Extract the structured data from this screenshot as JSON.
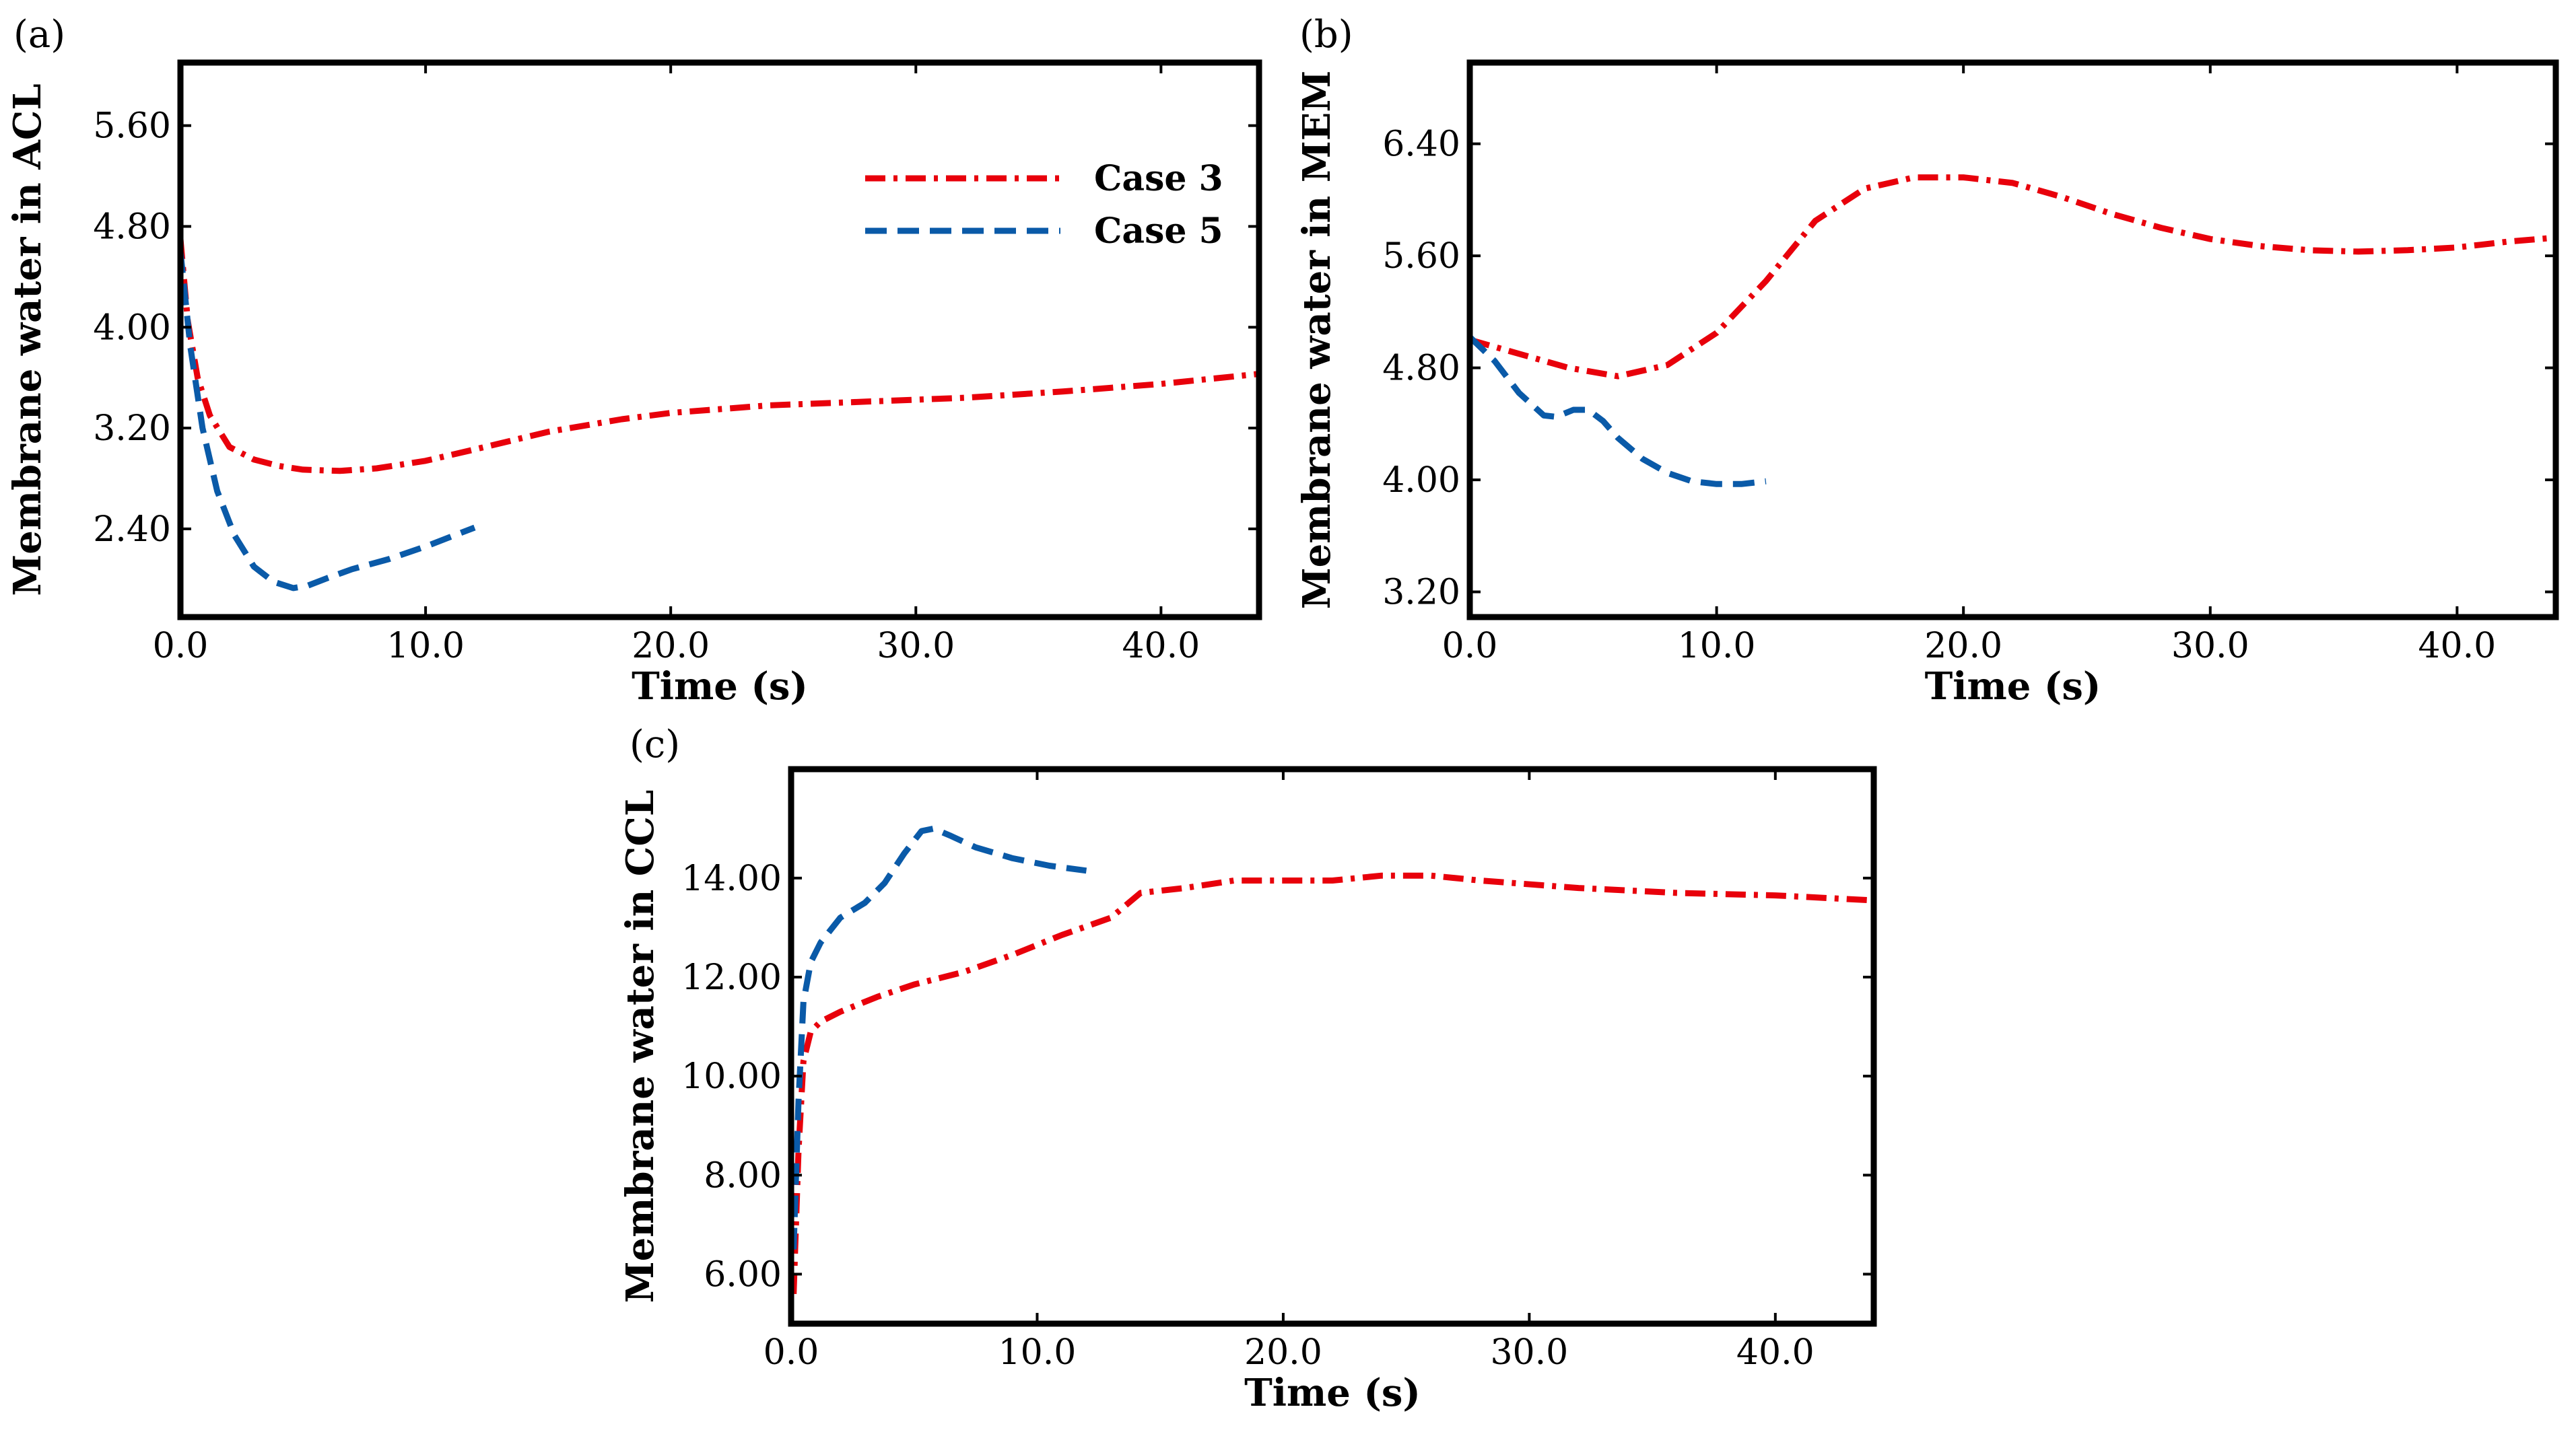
{
  "chart_data": [
    {
      "panel": "(a)",
      "type": "line",
      "title": "",
      "xlabel": "Time (s)",
      "ylabel": "Membrane water in ACL",
      "xlim": [
        0,
        44
      ],
      "ylim": [
        1.7,
        6.1
      ],
      "xticks": [
        0,
        10,
        20,
        30,
        40
      ],
      "xtick_labels": [
        "0.0",
        "10.0",
        "20.0",
        "30.0",
        "40.0"
      ],
      "yticks": [
        2.4,
        3.2,
        4.0,
        4.8,
        5.6
      ],
      "ytick_labels": [
        "2.40",
        "3.20",
        "4.00",
        "4.80",
        "5.60"
      ],
      "legend": [
        {
          "label": "Case 3",
          "color": "#e8000b",
          "style": "dashdot"
        },
        {
          "label": "Case 5",
          "color": "#0a5aa8",
          "style": "dashed"
        }
      ],
      "series": [
        {
          "name": "Case 3",
          "color": "#e8000b",
          "style": "dashdot",
          "x": [
            0,
            0.3,
            0.7,
            1.2,
            2,
            3,
            4,
            5,
            6.5,
            8,
            10,
            12,
            15,
            18,
            20,
            24,
            28,
            32,
            36,
            40,
            44
          ],
          "y": [
            4.7,
            4.05,
            3.6,
            3.3,
            3.05,
            2.95,
            2.9,
            2.87,
            2.86,
            2.88,
            2.94,
            3.03,
            3.17,
            3.27,
            3.32,
            3.38,
            3.41,
            3.44,
            3.49,
            3.55,
            3.63
          ]
        },
        {
          "name": "Case 5",
          "color": "#0a5aa8",
          "style": "dashed",
          "x": [
            0,
            0.4,
            0.9,
            1.5,
            2.2,
            3,
            3.8,
            4.6,
            5.2,
            6,
            7,
            8.5,
            10,
            12
          ],
          "y": [
            4.6,
            3.85,
            3.2,
            2.7,
            2.35,
            2.1,
            1.98,
            1.93,
            1.95,
            2.01,
            2.08,
            2.16,
            2.26,
            2.41
          ]
        }
      ]
    },
    {
      "panel": "(b)",
      "type": "line",
      "title": "",
      "xlabel": "Time (s)",
      "ylabel": "Membrane water in MEM",
      "xlim": [
        0,
        44
      ],
      "ylim": [
        3.02,
        6.98
      ],
      "xticks": [
        0,
        10,
        20,
        30,
        40
      ],
      "xtick_labels": [
        "0.0",
        "10.0",
        "20.0",
        "30.0",
        "40.0"
      ],
      "yticks": [
        3.2,
        4.0,
        4.8,
        5.6,
        6.4
      ],
      "ytick_labels": [
        "3.20",
        "4.00",
        "4.80",
        "5.60",
        "6.40"
      ],
      "series": [
        {
          "name": "Case 3",
          "color": "#e8000b",
          "style": "dashdot",
          "x": [
            0,
            2,
            4,
            6,
            8,
            10,
            12,
            14,
            16,
            18,
            20,
            22,
            24,
            26,
            28,
            30,
            32,
            34,
            36,
            38,
            40,
            42,
            44
          ],
          "y": [
            5.0,
            4.9,
            4.8,
            4.74,
            4.82,
            5.05,
            5.42,
            5.85,
            6.08,
            6.16,
            6.16,
            6.12,
            6.02,
            5.9,
            5.8,
            5.72,
            5.67,
            5.64,
            5.63,
            5.64,
            5.66,
            5.7,
            5.73
          ]
        },
        {
          "name": "Case 5",
          "color": "#0a5aa8",
          "style": "dashed",
          "x": [
            0,
            1,
            2,
            3,
            3.5,
            4.2,
            4.8,
            5.4,
            6,
            7,
            8,
            9,
            10,
            11,
            12
          ],
          "y": [
            5.02,
            4.85,
            4.62,
            4.46,
            4.45,
            4.5,
            4.5,
            4.42,
            4.3,
            4.15,
            4.05,
            3.99,
            3.97,
            3.97,
            3.99
          ]
        }
      ]
    },
    {
      "panel": "(c)",
      "type": "line",
      "title": "",
      "xlabel": "Time (s)",
      "ylabel": "Membrane water in CCL",
      "xlim": [
        0,
        44
      ],
      "ylim": [
        5,
        16.2
      ],
      "xticks": [
        0,
        10,
        20,
        30,
        40
      ],
      "xtick_labels": [
        "0.0",
        "10.0",
        "20.0",
        "30.0",
        "40.0"
      ],
      "yticks": [
        6,
        8,
        10,
        12,
        14
      ],
      "ytick_labels": [
        "6.00",
        "8.00",
        "10.00",
        "12.00",
        "14.00"
      ],
      "series": [
        {
          "name": "Case 3",
          "color": "#e8000b",
          "style": "dashdot",
          "x": [
            0.1,
            0.3,
            0.5,
            0.8,
            1.2,
            2,
            3.5,
            5,
            7,
            9,
            11,
            13,
            13.6,
            14.2,
            16,
            18,
            20,
            22,
            24,
            26,
            28,
            32,
            36,
            40,
            44
          ],
          "y": [
            5.6,
            8.5,
            10.3,
            10.9,
            11.1,
            11.3,
            11.6,
            11.85,
            12.1,
            12.45,
            12.85,
            13.2,
            13.45,
            13.7,
            13.8,
            13.95,
            13.95,
            13.95,
            14.05,
            14.05,
            13.95,
            13.8,
            13.7,
            13.65,
            13.55
          ]
        },
        {
          "name": "Case 5",
          "color": "#0a5aa8",
          "style": "dashed",
          "x": [
            0.1,
            0.3,
            0.5,
            0.8,
            1.2,
            2,
            3,
            3.8,
            4.6,
            5.3,
            5.8,
            6.5,
            7.5,
            9,
            10.5,
            12
          ],
          "y": [
            6.5,
            9.5,
            11.5,
            12.3,
            12.7,
            13.2,
            13.5,
            13.9,
            14.5,
            14.95,
            15.0,
            14.85,
            14.62,
            14.4,
            14.25,
            14.15
          ]
        }
      ]
    }
  ]
}
